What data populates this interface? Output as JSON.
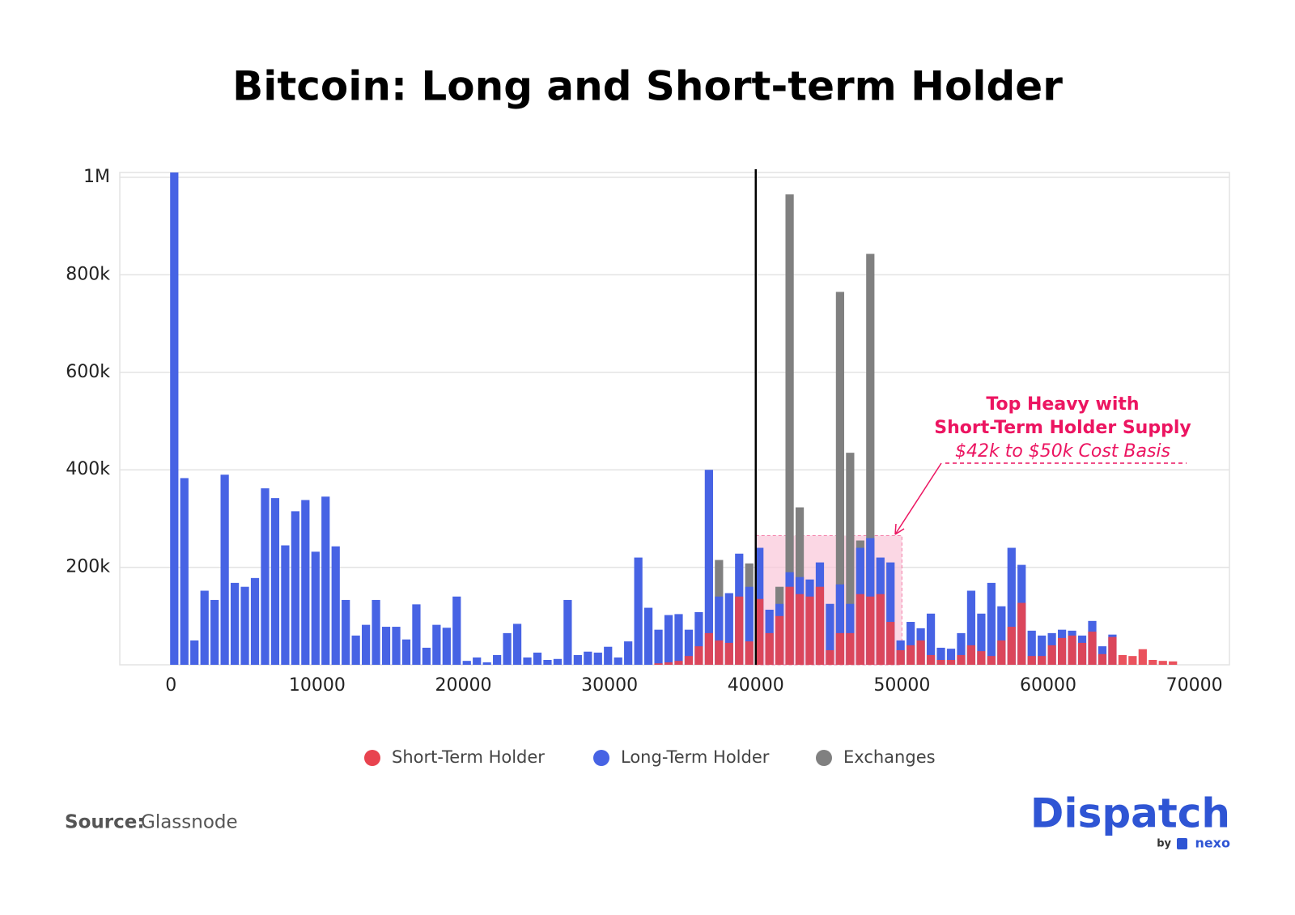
{
  "chart_data": {
    "type": "bar",
    "title": "Bitcoin: Long and Short-term Holder",
    "x": [
      226,
      916,
      1606,
      2296,
      2986,
      3676,
      4366,
      5056,
      5746,
      6436,
      7126,
      7816,
      8506,
      9196,
      9886,
      10576,
      11266,
      11956,
      12646,
      13336,
      14026,
      14716,
      15406,
      16096,
      16786,
      17476,
      18166,
      18856,
      19546,
      20236,
      20926,
      21616,
      22306,
      22996,
      23686,
      24376,
      25066,
      25756,
      26446,
      27136,
      27826,
      28516,
      29206,
      29896,
      30586,
      31276,
      31966,
      32656,
      33346,
      34036,
      34726,
      35416,
      36106,
      36796,
      37486,
      38176,
      38866,
      39556,
      40246,
      40936,
      41626,
      42316,
      43006,
      43696,
      44386,
      45076,
      45766,
      46456,
      47146,
      47836,
      48526,
      49216,
      49906,
      50596,
      51286,
      51976,
      52666,
      53356,
      54046,
      54736,
      55426,
      56116,
      56806,
      57496,
      58186,
      58876,
      59566,
      60256,
      60946,
      61636,
      62326,
      63016,
      63706,
      64396,
      65086,
      65776,
      66466,
      67156,
      67846,
      68536
    ],
    "series": [
      {
        "name": "Short-Term Holder",
        "color": "#e8434f",
        "values": [
          0,
          0,
          0,
          0,
          0,
          0,
          0,
          0,
          0,
          0,
          0,
          0,
          0,
          0,
          0,
          0,
          0,
          0,
          0,
          0,
          0,
          0,
          0,
          0,
          0,
          0,
          0,
          0,
          0,
          0,
          0,
          0,
          0,
          0,
          0,
          0,
          0,
          0,
          0,
          0,
          0,
          0,
          0,
          0,
          0,
          0,
          0,
          0,
          3000,
          5000,
          8000,
          18000,
          38000,
          65000,
          50000,
          45000,
          140000,
          48000,
          135000,
          65000,
          100000,
          160000,
          145000,
          140000,
          160000,
          30000,
          65000,
          65000,
          145000,
          140000,
          145000,
          88000,
          30000,
          40000,
          50000,
          20000,
          10000,
          10000,
          20000,
          40000,
          28000,
          18000,
          50000,
          78000,
          127000,
          18000,
          18000,
          40000,
          55000,
          60000,
          45000,
          68000,
          22000,
          57000,
          20000,
          18000,
          32000,
          10000,
          8000,
          7000
        ]
      },
      {
        "name": "Long-Term Holder",
        "color": "#4763e4",
        "values": [
          1010000,
          383000,
          50000,
          152000,
          133000,
          390000,
          168000,
          160000,
          178000,
          362000,
          342000,
          245000,
          315000,
          338000,
          232000,
          345000,
          243000,
          133000,
          60000,
          82000,
          133000,
          78000,
          78000,
          52000,
          124000,
          35000,
          82000,
          76000,
          140000,
          8000,
          15000,
          5000,
          20000,
          65000,
          84000,
          15000,
          25000,
          10000,
          12000,
          133000,
          20000,
          27000,
          25000,
          37000,
          15000,
          48000,
          220000,
          117000,
          72000,
          102000,
          104000,
          72000,
          108000,
          400000,
          140000,
          147000,
          228000,
          160000,
          240000,
          113000,
          125000,
          190000,
          180000,
          175000,
          210000,
          125000,
          165000,
          125000,
          240000,
          260000,
          220000,
          210000,
          50000,
          88000,
          75000,
          105000,
          35000,
          33000,
          65000,
          152000,
          105000,
          168000,
          120000,
          240000,
          205000,
          70000,
          60000,
          65000,
          72000,
          70000,
          60000,
          90000,
          38000,
          62000,
          0,
          0,
          0,
          0,
          0,
          0
        ]
      },
      {
        "name": "Exchanges",
        "color": "#808080",
        "values": [
          0,
          0,
          0,
          0,
          0,
          0,
          0,
          0,
          0,
          0,
          0,
          0,
          0,
          0,
          0,
          0,
          0,
          0,
          0,
          0,
          0,
          0,
          0,
          0,
          0,
          0,
          0,
          0,
          0,
          0,
          0,
          0,
          0,
          0,
          0,
          0,
          0,
          0,
          0,
          0,
          0,
          0,
          0,
          0,
          0,
          0,
          0,
          0,
          0,
          0,
          0,
          0,
          0,
          0,
          215000,
          0,
          0,
          208000,
          0,
          0,
          160000,
          965000,
          323000,
          0,
          0,
          0,
          765000,
          435000,
          255000,
          843000,
          0,
          0,
          0,
          0,
          0,
          0,
          0,
          0,
          0,
          0,
          0,
          0,
          0,
          0,
          0,
          0,
          0,
          0,
          0,
          0,
          0,
          0,
          0,
          0,
          0,
          0,
          0,
          0,
          0,
          0
        ]
      }
    ],
    "xlim": [
      -3500,
      72400
    ],
    "ylim": [
      0,
      1010000
    ],
    "xticks": [
      0,
      10000,
      20000,
      30000,
      40000,
      50000,
      60000,
      70000
    ],
    "yticks": [
      {
        "value": 200000,
        "label": "200k"
      },
      {
        "value": 400000,
        "label": "400k"
      },
      {
        "value": 600000,
        "label": "600k"
      },
      {
        "value": 800000,
        "label": "800k"
      },
      {
        "value": 1000000,
        "label": "1M"
      }
    ],
    "grid": true,
    "legend": "bottom",
    "vline": 40000,
    "highlight": {
      "xlim": [
        40000,
        50000
      ],
      "ymax": 265000,
      "color": "#f9c6d9"
    },
    "annotation": {
      "lines": [
        "Top Heavy with",
        "Short-Term Holder Supply",
        "$42k to $50k Cost Basis"
      ],
      "color": "#ec1561"
    },
    "source": {
      "label": "Source:",
      "value": "Glassnode"
    },
    "branding": {
      "name": "Dispatch",
      "by": "by",
      "partner": "nexo"
    }
  }
}
